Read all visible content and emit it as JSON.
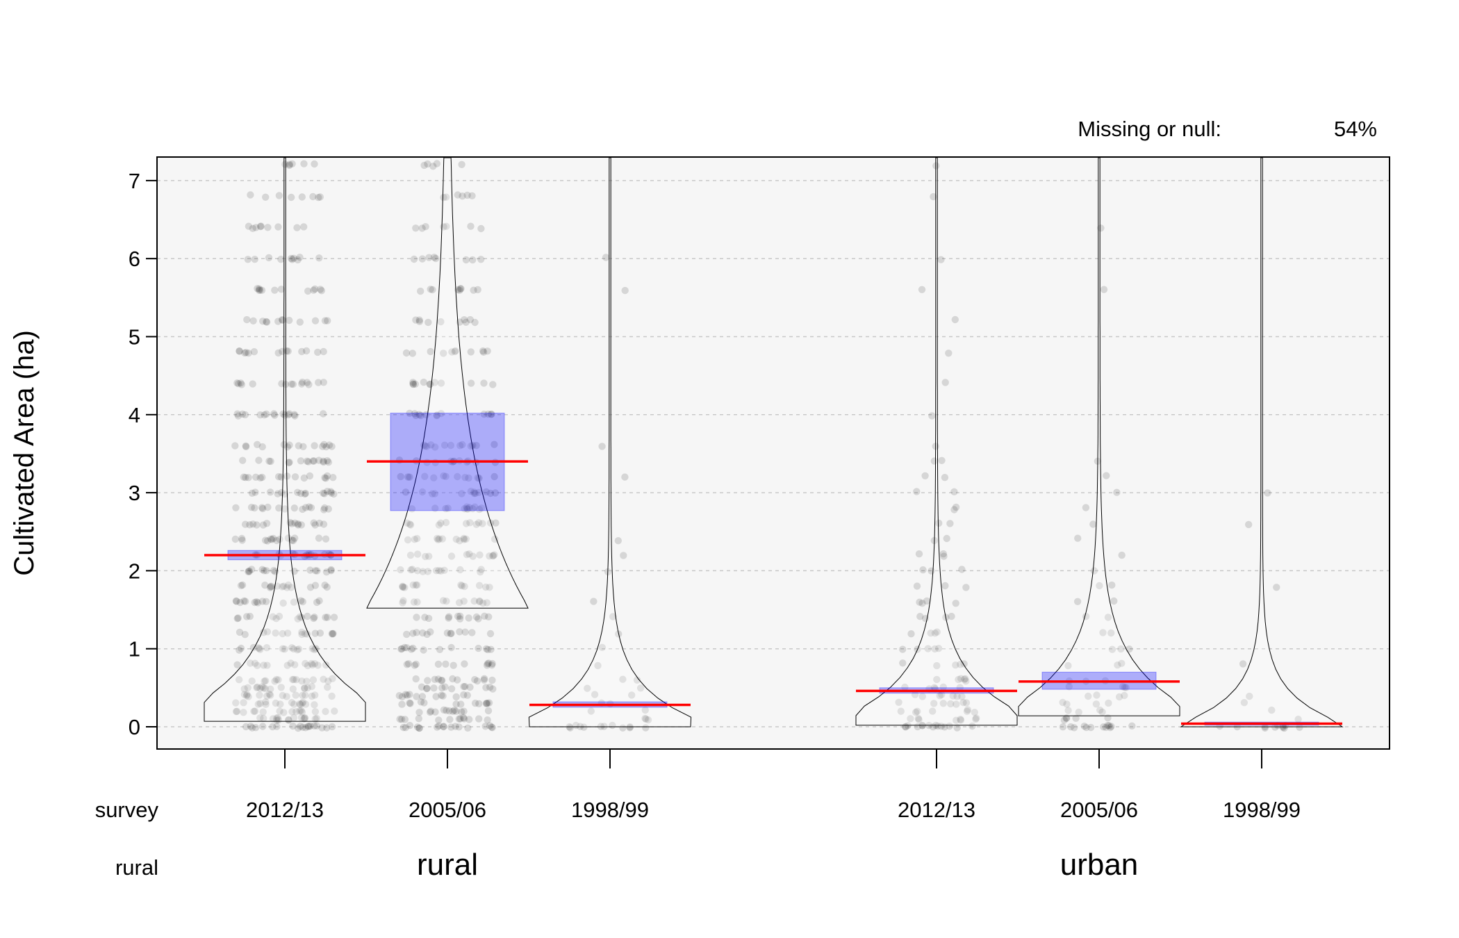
{
  "chart_data": {
    "type": "scatter",
    "subtype": "violin-pirate-plot",
    "ylabel": "Cultivated Area (ha)",
    "ylim": [
      -0.3,
      7.3
    ],
    "y_ticks": [
      0,
      1,
      2,
      3,
      4,
      5,
      6,
      7
    ],
    "grid": true,
    "note_label": "Missing or null:",
    "note_value": "54%",
    "row_labels": {
      "survey": "survey",
      "rural": "rural"
    },
    "groups": [
      {
        "label": "rural"
      },
      {
        "label": "urban"
      }
    ],
    "series": [
      {
        "group": "rural",
        "survey": "2012/13",
        "mean": 2.2,
        "ci_low": 2.14,
        "ci_high": 2.26,
        "violin_min": 0.07,
        "violin_bulge": 0.35,
        "dot_density": 1.0
      },
      {
        "group": "rural",
        "survey": "2005/06",
        "mean": 3.4,
        "ci_low": 2.77,
        "ci_high": 4.02,
        "violin_min": 1.52,
        "violin_bulge": 1.52,
        "dot_density": 0.8
      },
      {
        "group": "rural",
        "survey": "1998/99",
        "mean": 0.28,
        "ci_low": 0.25,
        "ci_high": 0.32,
        "violin_min": 0.0,
        "violin_bulge": 0.12,
        "dot_density": 0.18
      },
      {
        "group": "urban",
        "survey": "2012/13",
        "mean": 0.46,
        "ci_low": 0.43,
        "ci_high": 0.5,
        "violin_min": 0.02,
        "violin_bulge": 0.2,
        "dot_density": 0.5
      },
      {
        "group": "urban",
        "survey": "2005/06",
        "mean": 0.58,
        "ci_low": 0.48,
        "ci_high": 0.7,
        "violin_min": 0.14,
        "violin_bulge": 0.3,
        "dot_density": 0.32
      },
      {
        "group": "urban",
        "survey": "1998/99",
        "mean": 0.04,
        "ci_low": 0.02,
        "ci_high": 0.06,
        "violin_min": 0.0,
        "violin_bulge": 0.04,
        "dot_density": 0.06
      }
    ],
    "colors": {
      "mean_line": "#ff0000",
      "ci_box": "#0000ff",
      "points": "#000000",
      "panel_bg": "#f6f6f6",
      "grid": "#c8c8c8"
    }
  }
}
